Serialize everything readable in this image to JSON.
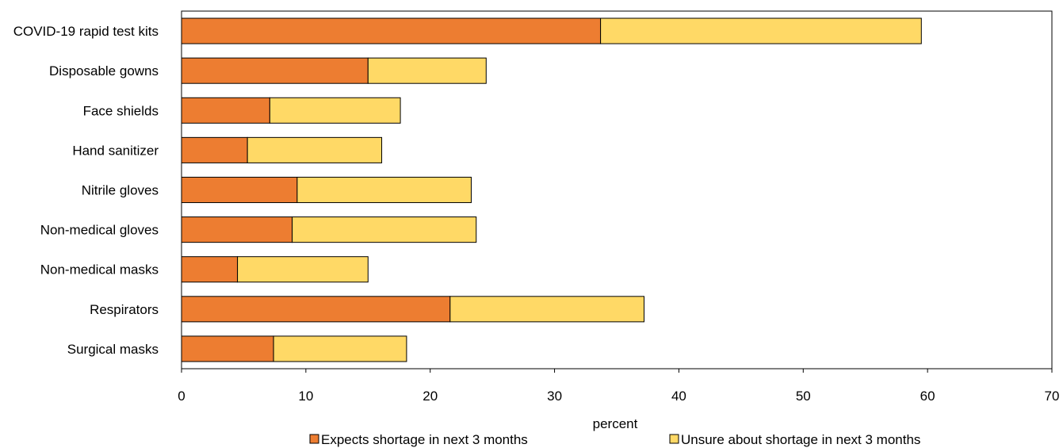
{
  "chart_data": {
    "type": "bar",
    "orientation": "horizontal",
    "stacked": true,
    "categories": [
      "COVID-19 rapid test kits",
      "Disposable gowns",
      "Face shields",
      "Hand sanitizer",
      "Nitrile gloves",
      "Non-medical gloves",
      "Non-medical masks",
      "Respirators",
      "Surgical masks"
    ],
    "series": [
      {
        "name": "Expects shortage in next 3 months",
        "color": "#ED7D31",
        "values": [
          33.7,
          15.0,
          7.1,
          5.3,
          9.3,
          8.9,
          4.5,
          21.6,
          7.4
        ]
      },
      {
        "name": "Unsure about shortage in next 3 months",
        "color": "#FFD966",
        "values": [
          25.8,
          9.5,
          10.5,
          10.8,
          14.0,
          14.8,
          10.5,
          15.6,
          10.7
        ]
      }
    ],
    "xlabel": "percent",
    "ylabel": "",
    "xlim": [
      0,
      70
    ],
    "xticks": [
      0,
      10,
      20,
      30,
      40,
      50,
      60,
      70
    ],
    "grid": false,
    "legend_position": "bottom"
  }
}
